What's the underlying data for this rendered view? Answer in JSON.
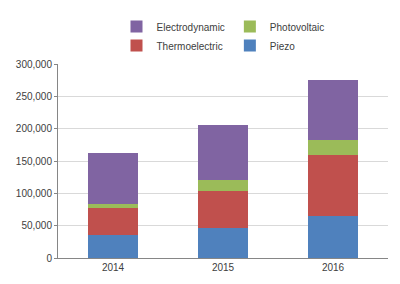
{
  "chart_data": {
    "type": "bar",
    "stacked": true,
    "grid": true,
    "legend": "top",
    "categories": [
      "2014",
      "2015",
      "2016"
    ],
    "series": [
      {
        "name": "Piezo",
        "color": "#4f81bd",
        "values": [
          35000,
          47000,
          65000
        ]
      },
      {
        "name": "Thermoelectric",
        "color": "#c0504d",
        "values": [
          42000,
          57000,
          95000
        ]
      },
      {
        "name": "Photovoltaic",
        "color": "#9bbb59",
        "values": [
          7000,
          16000,
          23000
        ]
      },
      {
        "name": "Electrodynamic",
        "color": "#8064a2",
        "values": [
          79000,
          85000,
          93000
        ]
      }
    ],
    "ylim": [
      0,
      300000
    ],
    "yticks": [
      0,
      {
        "value": 50000,
        "label": "50,000"
      },
      {
        "value": 100000,
        "label": "100,000"
      },
      {
        "value": 150000,
        "label": "150,000"
      },
      {
        "value": 200000,
        "label": "200,000"
      },
      {
        "value": 250000,
        "label": "250,000"
      },
      {
        "value": 300000,
        "label": "300,000"
      }
    ]
  }
}
